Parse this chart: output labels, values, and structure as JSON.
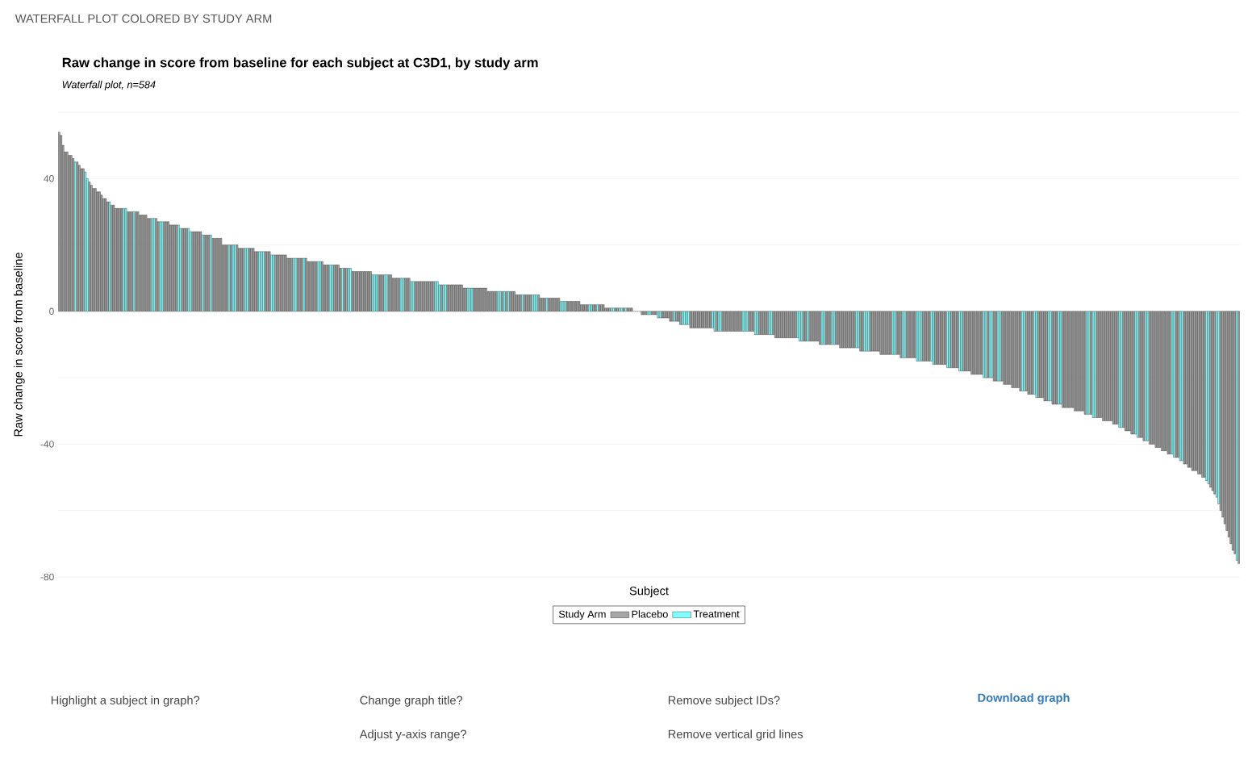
{
  "chart_data": {
    "type": "bar",
    "title": "Raw change in score from baseline for each subject at C3D1, by study arm",
    "subtitle": "Waterfall plot, n=584",
    "xlabel": "Subject",
    "ylabel": "Raw change in score from baseline",
    "legend_title": "Study Arm",
    "annotations": [
      "WATERFALL PLOT COLORED BY STUDY ARM",
      "Highlight a subject in graph?",
      "Change graph title?",
      "Remove subject IDs?",
      "Download graph",
      "Adjust y-axis range?",
      "Remove vertical grid lines"
    ],
    "ylim": [
      -80,
      60
    ],
    "yticks": [
      -80,
      {
        "value": -60,
        "label": null
      },
      -40,
      {
        "value": -20,
        "label": null
      },
      0,
      {
        "value": 20,
        "label": null
      },
      40,
      {
        "value": 60,
        "label": null
      }
    ],
    "grid": "y",
    "legend": "bottom",
    "categories": [
      null,
      null,
      null,
      null,
      null,
      null,
      null,
      null,
      null,
      null,
      null,
      null,
      null,
      null,
      null,
      null,
      null,
      null,
      null,
      null,
      null,
      null,
      null,
      null,
      null,
      null,
      null,
      null,
      null,
      null,
      null,
      null,
      null,
      null,
      null,
      null,
      null,
      null,
      null,
      null,
      null,
      null,
      null,
      null,
      null,
      null,
      null,
      null,
      null,
      null,
      null,
      null,
      null,
      null,
      null,
      null,
      null,
      null,
      null,
      null,
      null,
      null,
      null,
      null,
      null,
      null,
      null,
      null,
      null,
      null,
      null,
      null,
      null,
      null,
      null,
      null,
      null,
      null,
      null,
      null,
      null,
      null,
      null,
      null,
      null,
      null,
      null,
      null,
      null,
      null,
      null,
      null,
      null,
      null,
      null,
      null,
      null,
      null,
      null,
      null,
      null,
      null,
      null,
      null,
      null,
      null,
      null,
      null,
      null,
      null,
      null,
      null,
      null,
      null,
      null,
      null,
      null,
      null,
      null,
      null,
      null,
      null,
      null,
      null,
      null,
      null,
      null,
      null,
      null,
      null,
      null,
      null,
      null,
      null,
      null,
      null,
      null,
      null,
      null,
      null,
      null,
      null,
      null,
      null,
      null,
      null,
      null,
      null,
      null,
      null,
      null,
      null,
      null,
      null,
      null,
      null,
      null,
      null,
      null,
      null,
      null,
      null,
      null,
      null,
      null,
      null,
      null,
      null,
      null,
      null,
      null,
      null,
      null,
      null,
      null,
      null,
      null,
      null,
      null,
      null,
      null,
      null,
      null,
      null,
      null,
      null,
      null,
      null,
      null,
      null,
      null,
      null,
      null,
      null,
      null,
      null,
      null,
      null,
      null,
      null,
      null,
      null,
      null,
      null,
      null,
      null,
      null,
      null,
      null,
      null,
      null,
      null,
      null,
      null,
      null,
      null,
      null,
      null,
      null,
      null,
      null,
      null,
      null,
      null,
      null,
      null,
      null,
      null,
      null,
      null,
      null,
      null,
      null,
      null,
      null,
      null,
      null,
      null,
      null,
      null,
      null,
      null,
      null,
      null,
      null,
      null,
      null,
      null,
      null,
      null,
      null,
      null,
      null,
      null,
      null,
      null,
      null,
      null,
      null,
      null,
      null,
      null,
      null,
      null,
      null,
      null,
      null,
      null,
      null,
      null,
      null,
      null,
      null,
      null,
      null,
      null,
      null,
      null,
      null,
      null,
      null,
      null,
      null,
      null,
      null,
      null,
      null,
      null,
      null,
      null,
      null,
      null,
      null,
      null,
      null,
      null,
      null,
      null,
      null,
      null,
      null,
      null,
      null,
      null,
      null,
      null,
      null,
      null,
      null,
      null,
      null,
      null,
      null,
      null,
      null,
      null,
      null,
      null,
      null,
      null,
      null,
      null,
      null,
      null,
      null,
      null,
      null,
      null,
      null,
      null,
      null,
      null,
      null,
      null,
      null,
      null,
      null,
      null,
      null,
      null,
      null,
      null,
      null,
      null,
      null,
      null,
      null,
      null,
      null,
      null,
      null,
      null,
      null,
      null,
      null,
      null,
      null,
      null,
      null,
      null,
      null,
      null,
      null,
      null,
      null,
      null,
      null,
      null,
      null,
      null,
      null,
      null,
      null,
      null,
      null,
      null,
      null,
      null,
      null,
      null,
      null,
      null,
      null,
      null,
      null,
      null,
      null,
      null,
      null,
      null,
      null,
      null,
      null,
      null,
      null,
      null,
      null,
      null,
      null,
      null,
      null,
      null,
      null,
      null,
      null,
      null,
      null,
      null,
      null,
      null,
      null,
      null,
      null,
      null,
      null,
      null,
      null,
      null,
      null,
      null,
      null,
      null,
      null,
      null,
      null,
      null,
      null,
      null,
      null,
      null,
      null,
      null,
      null,
      null,
      null,
      null,
      null,
      null,
      null,
      null,
      null,
      null,
      null,
      null,
      null,
      null,
      null,
      null,
      null,
      null,
      null,
      null,
      null,
      null,
      null,
      null,
      null,
      null,
      null,
      null,
      null,
      null,
      null,
      null,
      null,
      null,
      null,
      null,
      null,
      null,
      null,
      null,
      null,
      null,
      null,
      null,
      null,
      null,
      null,
      null,
      null,
      null,
      null,
      null,
      null,
      null,
      null,
      null,
      null,
      null,
      null,
      null,
      null,
      null,
      null,
      null,
      null,
      null,
      null,
      null,
      null,
      null,
      null,
      null,
      null,
      null,
      null,
      null,
      null,
      null,
      null,
      null,
      null,
      null,
      null,
      null,
      null,
      null,
      null,
      null,
      null,
      null,
      null,
      null,
      null,
      null,
      null,
      null,
      null,
      null,
      null,
      null,
      null,
      null,
      null,
      null,
      null,
      null,
      null,
      null,
      null,
      null,
      null,
      null,
      null,
      null,
      null,
      null,
      null,
      null,
      null,
      null,
      null,
      null,
      null,
      null,
      null,
      null,
      null,
      null,
      null,
      null,
      null,
      null,
      null,
      null,
      null,
      null,
      null,
      null,
      null,
      null,
      null,
      null,
      null,
      null,
      null,
      null,
      null,
      null,
      null,
      null,
      null,
      null
    ],
    "series": [
      {
        "name": "Placebo",
        "color": "#a6a6a6",
        "values": [
          54,
          53,
          50,
          48,
          48,
          47,
          47,
          46,
          null,
          45,
          44,
          43,
          43,
          null,
          null,
          39,
          38,
          37,
          37,
          36,
          36,
          35,
          34,
          34,
          33,
          null,
          32,
          32,
          31,
          31,
          31,
          31,
          null,
          null,
          30,
          30,
          30,
          null,
          30,
          30,
          29,
          29,
          29,
          29,
          28,
          28,
          null,
          null,
          28,
          27,
          null,
          null,
          27,
          27,
          27,
          26,
          26,
          26,
          26,
          null,
          null,
          25,
          25,
          25,
          null,
          null,
          24,
          24,
          24,
          24,
          24,
          null,
          23,
          23,
          23,
          null,
          22,
          22,
          22,
          22,
          22,
          20,
          20,
          20,
          null,
          20,
          null,
          null,
          20,
          19,
          19,
          19,
          null,
          null,
          19,
          19,
          19,
          18,
          18,
          null,
          null,
          null,
          18,
          18,
          18,
          null,
          null,
          17,
          17,
          17,
          17,
          17,
          17,
          16,
          16,
          16,
          null,
          null,
          16,
          16,
          16,
          null,
          16,
          15,
          15,
          15,
          15,
          15,
          null,
          null,
          15,
          14,
          14,
          14,
          null,
          null,
          14,
          14,
          14,
          13,
          null,
          13,
          13,
          null,
          null,
          12,
          12,
          12,
          12,
          12,
          12,
          12,
          12,
          12,
          12,
          null,
          null,
          null,
          11,
          11,
          11,
          null,
          null,
          11,
          11,
          10,
          10,
          10,
          10,
          null,
          null,
          10,
          10,
          10,
          null,
          null,
          9,
          9,
          9,
          9,
          9,
          9,
          9,
          9,
          9,
          9,
          null,
          null,
          null,
          8,
          null,
          null,
          8,
          8,
          8,
          8,
          8,
          8,
          8,
          8,
          7,
          7,
          null,
          null,
          null,
          7,
          7,
          7,
          7,
          7,
          7,
          7,
          6,
          6,
          6,
          6,
          6,
          null,
          null,
          6,
          null,
          6,
          null,
          6,
          6,
          6,
          5,
          5,
          5,
          null,
          5,
          5,
          5,
          5,
          null,
          null,
          null,
          5,
          4,
          4,
          4,
          null,
          4,
          4,
          4,
          4,
          4,
          4,
          null,
          null,
          null,
          3,
          3,
          3,
          3,
          3,
          3,
          3,
          2,
          2,
          2,
          2,
          null,
          null,
          2,
          2,
          null,
          2,
          2,
          2,
          1,
          1,
          1,
          null,
          null,
          1,
          1,
          null,
          null,
          1,
          null,
          1,
          1,
          1,
          0,
          0,
          0,
          0,
          -1,
          -1,
          -1,
          null,
          null,
          -1,
          -1,
          -1,
          null,
          null,
          -2,
          -2,
          -2,
          -2,
          -3,
          -3,
          null,
          -3,
          -3,
          -4,
          null,
          null,
          null,
          null,
          -5,
          -5,
          -5,
          -5,
          -5,
          -5,
          -5,
          -5,
          -5,
          -5,
          -5,
          null,
          null,
          -6,
          null,
          null,
          -6,
          -6,
          -6,
          -6,
          -6,
          -6,
          -6,
          -6,
          -6,
          -6,
          null,
          null,
          null,
          -6,
          -6,
          -6,
          null,
          null,
          -7,
          -7,
          -7,
          -7,
          -7,
          null,
          null,
          -7,
          -8,
          -8,
          -8,
          -8,
          -8,
          -8,
          -8,
          -8,
          -8,
          -8,
          -8,
          null,
          null,
          null,
          -9,
          -9,
          null,
          -9,
          -9,
          -9,
          -9,
          -9,
          -10,
          null,
          null,
          -10,
          -10,
          -10,
          null,
          null,
          -10,
          -10,
          -11,
          -11,
          -11,
          -11,
          -11,
          -11,
          -11,
          -11,
          null,
          null,
          -12,
          -12,
          null,
          null,
          null,
          -12,
          -12,
          -12,
          -12,
          -12,
          -13,
          -13,
          -13,
          -13,
          -13,
          -13,
          null,
          null,
          -13,
          -13,
          -14,
          null,
          null,
          -14,
          -14,
          -14,
          -14,
          -14,
          null,
          null,
          null,
          -15,
          -15,
          -15,
          -15,
          null,
          null,
          -16,
          -16,
          -16,
          -16,
          -16,
          -16,
          null,
          null,
          -17,
          -17,
          -17,
          -17,
          null,
          null,
          -18,
          -18,
          -18,
          -18,
          -19,
          -19,
          -19,
          -19,
          -19,
          -19,
          null,
          null,
          -20,
          null,
          null,
          -21,
          -21,
          null,
          null,
          -21,
          -22,
          -22,
          -22,
          -22,
          -23,
          -23,
          -23,
          -23,
          -24,
          null,
          null,
          -24,
          -25,
          -25,
          -25,
          null,
          null,
          -26,
          -26,
          -26,
          -27,
          -27,
          null,
          null,
          -28,
          -28,
          -28,
          null,
          null,
          -29,
          -29,
          -29,
          -29,
          -29,
          -29,
          -30,
          -30,
          -30,
          -30,
          -30,
          -31,
          null,
          null,
          -31,
          null,
          null,
          -32,
          -32,
          -32,
          -33,
          -33,
          -33,
          -33,
          -33,
          -34,
          -34,
          -34,
          null,
          null,
          -35,
          -36,
          -36,
          -36,
          -37,
          -37,
          null,
          null,
          -38,
          -38,
          -39,
          null,
          null,
          -40,
          -40,
          -40,
          -41,
          -41,
          -41,
          -42,
          -42,
          -42,
          -43,
          -43,
          null,
          null,
          -44,
          -44,
          null,
          null,
          -46,
          -46,
          -47,
          -47,
          -48,
          -48,
          -48,
          -49,
          -49,
          -50,
          -50,
          null,
          null,
          -53,
          -54,
          -55,
          null,
          null,
          -60,
          -62,
          -64,
          -66,
          -68,
          -70,
          -72,
          -73,
          null,
          -76
        ]
      },
      {
        "name": "Treatment",
        "color": "#80ffff",
        "values": [
          null,
          null,
          null,
          null,
          null,
          null,
          null,
          null,
          45,
          null,
          null,
          null,
          null,
          42,
          40,
          null,
          null,
          null,
          null,
          null,
          null,
          null,
          null,
          null,
          null,
          33,
          null,
          null,
          null,
          null,
          null,
          null,
          31,
          31,
          null,
          null,
          null,
          30,
          null,
          null,
          null,
          null,
          null,
          null,
          null,
          null,
          28,
          28,
          null,
          null,
          27,
          27,
          null,
          null,
          null,
          null,
          null,
          null,
          null,
          26,
          25,
          null,
          null,
          null,
          25,
          24,
          null,
          null,
          null,
          null,
          null,
          23,
          null,
          null,
          null,
          23,
          null,
          null,
          null,
          null,
          null,
          null,
          null,
          null,
          20,
          null,
          20,
          20,
          null,
          null,
          null,
          null,
          19,
          19,
          null,
          null,
          null,
          null,
          null,
          18,
          18,
          18,
          null,
          null,
          null,
          17,
          17,
          null,
          null,
          null,
          null,
          null,
          null,
          null,
          null,
          null,
          16,
          16,
          null,
          null,
          null,
          16,
          null,
          null,
          null,
          null,
          null,
          null,
          15,
          15,
          null,
          null,
          null,
          null,
          14,
          14,
          null,
          null,
          null,
          null,
          13,
          null,
          null,
          13,
          13,
          null,
          null,
          null,
          null,
          null,
          null,
          null,
          null,
          null,
          null,
          11,
          11,
          11,
          null,
          null,
          null,
          11,
          11,
          null,
          null,
          null,
          null,
          null,
          null,
          10,
          10,
          null,
          null,
          null,
          9,
          9,
          null,
          null,
          null,
          null,
          null,
          null,
          null,
          null,
          null,
          null,
          9,
          9,
          8,
          null,
          8,
          8,
          null,
          null,
          null,
          null,
          null,
          null,
          null,
          null,
          null,
          null,
          7,
          7,
          7,
          null,
          null,
          null,
          null,
          null,
          null,
          null,
          null,
          null,
          null,
          null,
          null,
          6,
          6,
          null,
          6,
          null,
          6,
          null,
          null,
          null,
          null,
          null,
          null,
          5,
          null,
          null,
          null,
          null,
          5,
          5,
          5,
          null,
          null,
          null,
          null,
          4,
          null,
          null,
          null,
          null,
          null,
          null,
          3,
          3,
          3,
          null,
          null,
          null,
          null,
          null,
          null,
          null,
          null,
          null,
          null,
          null,
          2,
          2,
          null,
          null,
          2,
          null,
          null,
          null,
          null,
          null,
          null,
          1,
          1,
          null,
          null,
          1,
          1,
          null,
          1,
          null,
          null,
          null,
          null,
          null,
          null,
          null,
          null,
          null,
          null,
          -1,
          -1,
          null,
          null,
          null,
          -2,
          -2,
          null,
          null,
          null,
          null,
          null,
          null,
          -3,
          null,
          null,
          null,
          -4,
          -4,
          -4,
          -4,
          null,
          null,
          null,
          null,
          null,
          null,
          null,
          null,
          null,
          null,
          null,
          -5,
          -6,
          null,
          -6,
          -6,
          null,
          null,
          null,
          null,
          null,
          null,
          null,
          null,
          null,
          null,
          -6,
          -6,
          -6,
          null,
          null,
          null,
          -7,
          -7,
          null,
          null,
          null,
          null,
          null,
          -7,
          -7,
          null,
          null,
          null,
          null,
          null,
          null,
          null,
          null,
          null,
          null,
          null,
          null,
          -8,
          -9,
          -9,
          null,
          null,
          -9,
          null,
          null,
          null,
          null,
          null,
          null,
          -10,
          -10,
          null,
          null,
          null,
          -10,
          -10,
          null,
          null,
          null,
          null,
          null,
          null,
          null,
          null,
          null,
          null,
          -11,
          -11,
          null,
          null,
          -12,
          -12,
          -12,
          null,
          null,
          null,
          null,
          null,
          null,
          null,
          null,
          null,
          null,
          null,
          -13,
          -13,
          null,
          null,
          null,
          -14,
          -14,
          null,
          null,
          null,
          null,
          null,
          -15,
          -15,
          -15,
          null,
          null,
          null,
          null,
          -15,
          -16,
          null,
          null,
          null,
          null,
          null,
          null,
          -17,
          -17,
          null,
          null,
          null,
          null,
          -18,
          -18,
          null,
          null,
          null,
          null,
          null,
          null,
          null,
          null,
          null,
          null,
          -20,
          -20,
          null,
          -20,
          -20,
          null,
          null,
          -21,
          -21,
          null,
          null,
          null,
          null,
          null,
          null,
          null,
          null,
          null,
          null,
          -24,
          -24,
          null,
          null,
          null,
          null,
          -25,
          -26,
          null,
          null,
          null,
          null,
          null,
          -27,
          -27,
          null,
          null,
          null,
          -28,
          -28,
          null,
          null,
          null,
          null,
          null,
          null,
          null,
          null,
          null,
          null,
          null,
          null,
          -31,
          -31,
          null,
          -32,
          -32,
          null,
          null,
          null,
          null,
          null,
          null,
          null,
          null,
          null,
          null,
          null,
          -35,
          -35,
          null,
          null,
          null,
          null,
          null,
          null,
          -37,
          -38,
          null,
          null,
          null,
          -39,
          -39,
          null,
          null,
          null,
          null,
          null,
          null,
          null,
          null,
          null,
          null,
          null,
          -43,
          -44,
          null,
          null,
          -45,
          -45,
          null,
          null,
          null,
          null,
          null,
          null,
          null,
          null,
          null,
          null,
          null,
          -51,
          -52,
          null,
          null,
          null,
          -56,
          -58,
          null,
          null,
          null,
          null,
          null,
          null,
          null,
          null,
          -75,
          null
        ]
      }
    ]
  }
}
